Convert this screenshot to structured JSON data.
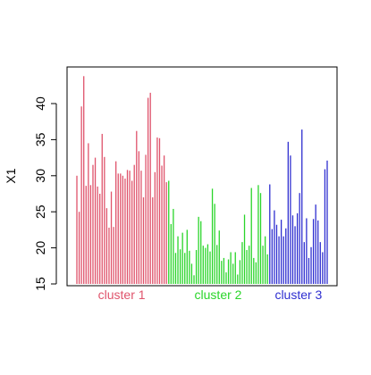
{
  "chart_data": {
    "type": "bar",
    "title": "",
    "xlabel": "",
    "ylabel": "X1",
    "ylim": [
      15,
      45
    ],
    "yticks": [
      15,
      20,
      25,
      30,
      35,
      40
    ],
    "grid": false,
    "legend": "none",
    "groups": [
      {
        "label": "cluster 1",
        "color": "#DF536B"
      },
      {
        "label": "cluster 2",
        "color": "#2AD52A"
      },
      {
        "label": "cluster 3",
        "color": "#2E2ED0"
      }
    ],
    "series": [
      {
        "group": 0,
        "values": [
          30.0,
          25.0,
          39.6,
          43.8,
          28.6,
          34.5,
          28.7,
          31.5,
          32.5,
          28.5,
          27.5,
          35.8,
          32.6,
          25.5,
          22.8,
          27.8,
          22.9,
          32.0,
          30.3,
          30.3,
          30.0,
          29.6,
          30.8,
          30.7,
          29.3,
          31.5,
          36.2,
          33.4,
          30.7,
          27.0,
          32.9,
          40.8,
          41.5,
          27.0,
          30.5,
          35.3,
          35.2,
          31.4,
          32.8,
          29.1
        ]
      },
      {
        "group": 1,
        "values": [
          29.3,
          23.3,
          25.4,
          19.3,
          21.6,
          19.8,
          22.1,
          19.3,
          22.5,
          19.6,
          17.8,
          16.2,
          19.7,
          24.3,
          23.7,
          20.3,
          20.0,
          20.5,
          19.5,
          28.2,
          26.1,
          20.4,
          22.4,
          18.2,
          18.6,
          16.6,
          18.4,
          19.4,
          17.8,
          19.4,
          16.3,
          18.3,
          20.8,
          24.6,
          19.7,
          20.3,
          28.3,
          18.6,
          18.0,
          28.7,
          27.6,
          20.3,
          21.6,
          19.1
        ]
      },
      {
        "group": 2,
        "values": [
          28.8,
          22.6,
          25.2,
          23.2,
          21.6,
          23.9,
          21.6,
          22.7,
          34.7,
          32.8,
          24.5,
          23.0,
          24.8,
          27.6,
          36.4,
          20.8,
          24.1,
          18.6,
          20.1,
          24.0,
          26.0,
          23.8,
          20.8,
          19.4,
          30.9,
          32.1
        ]
      }
    ]
  }
}
